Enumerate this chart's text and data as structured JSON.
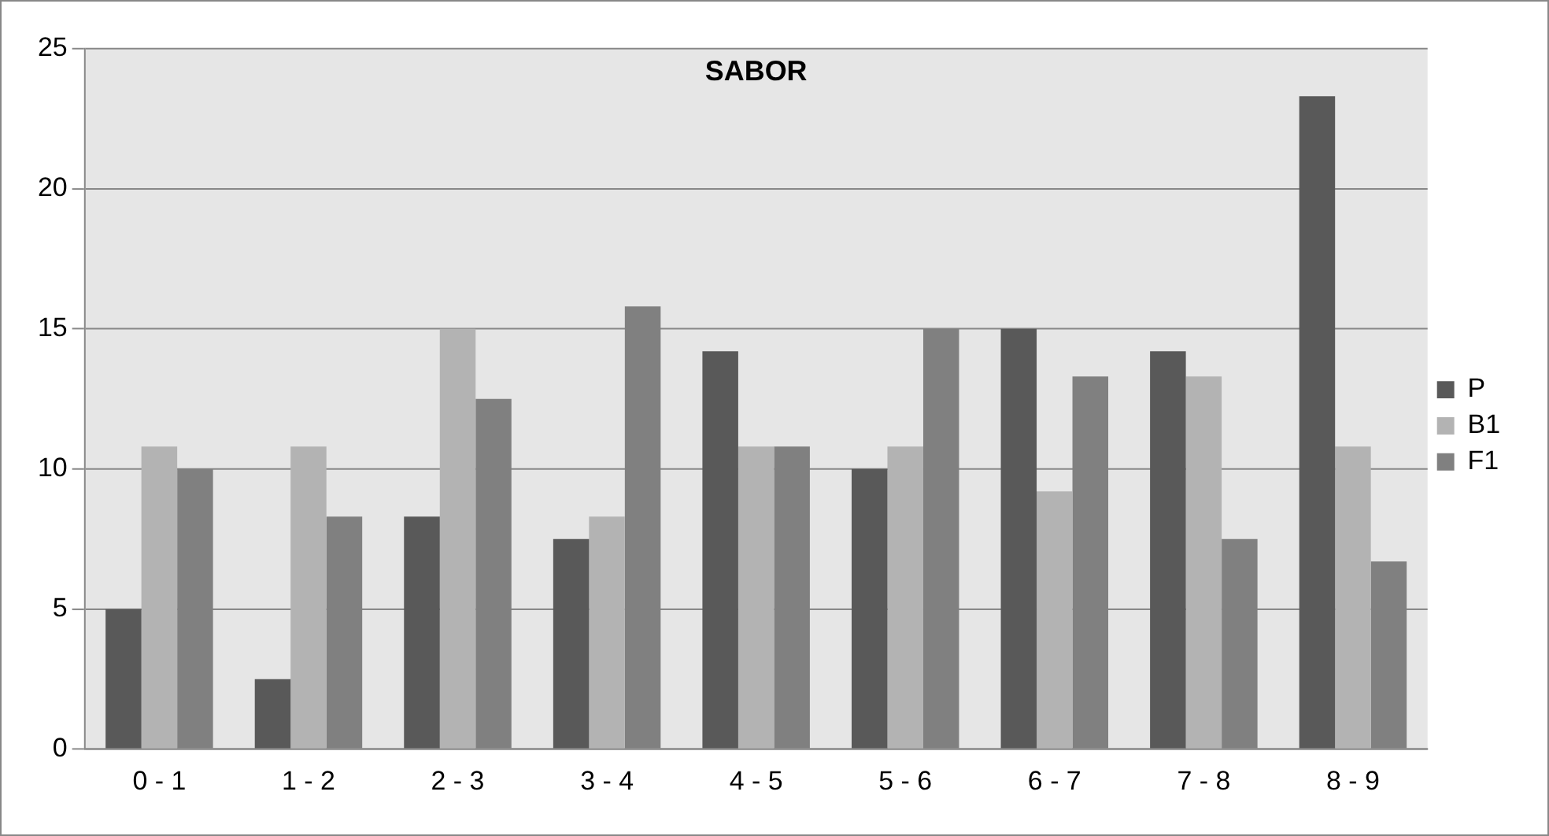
{
  "chart_data": {
    "type": "bar",
    "title": "SABOR",
    "categories": [
      "0 - 1",
      "1 - 2",
      "2 - 3",
      "3 - 4",
      "4 - 5",
      "5 - 6",
      "6 - 7",
      "7 - 8",
      "8 - 9"
    ],
    "series": [
      {
        "name": "P",
        "color": "#595959",
        "values": [
          5,
          2.5,
          8.3,
          7.5,
          14.2,
          10,
          15,
          14.2,
          23.3
        ]
      },
      {
        "name": "B1",
        "color": "#b3b3b3",
        "values": [
          10.8,
          10.8,
          15,
          8.3,
          10.8,
          10.8,
          9.2,
          13.3,
          10.8
        ]
      },
      {
        "name": "F1",
        "color": "#808080",
        "values": [
          10,
          8.3,
          12.5,
          15.8,
          10.8,
          15,
          13.3,
          7.5,
          6.7
        ]
      }
    ],
    "ylim": [
      0,
      25
    ],
    "yticks": [
      0,
      5,
      10,
      15,
      20,
      25
    ],
    "grid": "y",
    "legend": "right"
  }
}
